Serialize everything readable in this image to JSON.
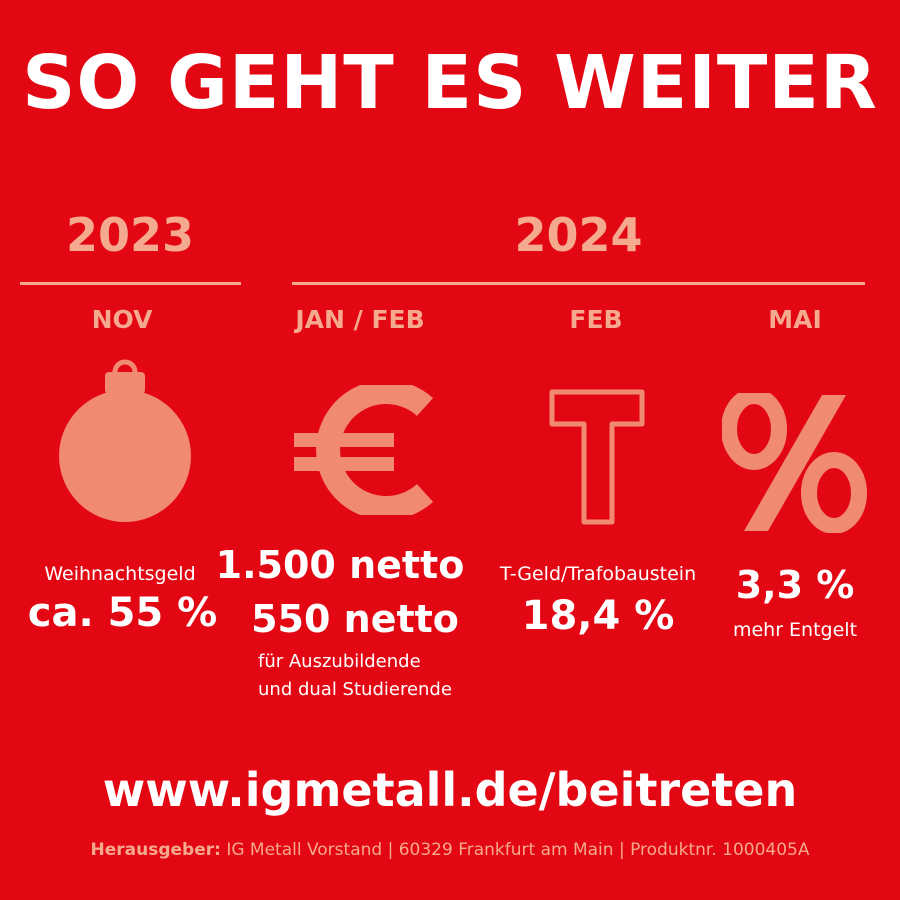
{
  "title": "SO GEHT ES WEITER",
  "years": {
    "y2023": "2023",
    "y2024": "2024"
  },
  "colors": {
    "background": "#e30613",
    "accent": "#f5a98f",
    "text": "#ffffff"
  },
  "columns": [
    {
      "month": "NOV",
      "icon": "christmas-ornament-icon",
      "label": "Weihnachtsgeld",
      "value": "ca. 55 %"
    },
    {
      "month": "JAN / FEB",
      "icon": "euro-icon",
      "value_primary": "1.500 netto",
      "value_secondary": "550 netto",
      "note_line1": "für Auszubildende",
      "note_line2": "und dual Studierende"
    },
    {
      "month": "FEB",
      "icon": "letter-t-icon",
      "label": "T-Geld/Trafobaustein",
      "value": "18,4 %"
    },
    {
      "month": "MAI",
      "icon": "percent-icon",
      "value": "3,3 %",
      "label": "mehr Entgelt"
    }
  ],
  "url": "www.igmetall.de/beitreten",
  "footer": {
    "publisher_label": "Herausgeber:",
    "publisher_text": " IG Metall Vorstand | 60329 Frankfurt am Main | Produktnr. 1000405A"
  }
}
